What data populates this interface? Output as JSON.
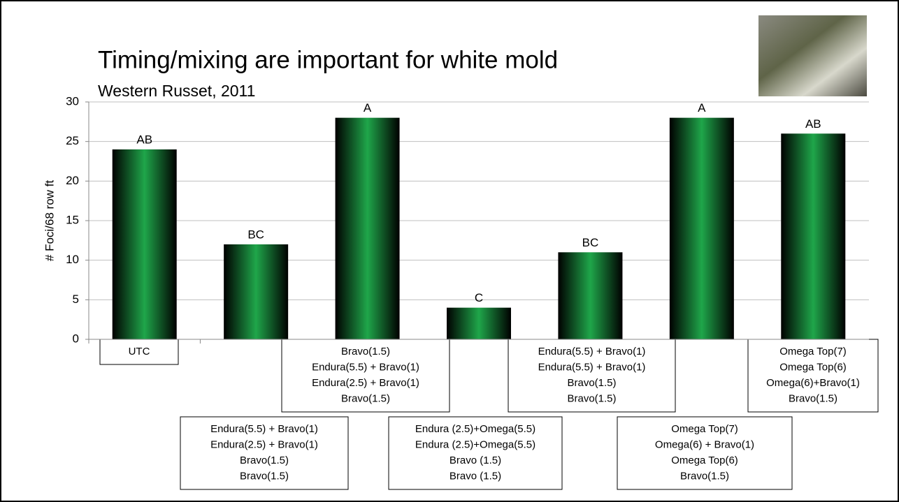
{
  "chart_data": {
    "type": "bar",
    "title": "Timing/mixing are important for white mold",
    "subtitle": "Western Russet, 2011",
    "y_label": "# Foci/68 row ft",
    "categories": [
      [
        "UTC"
      ],
      [
        "Endura(5.5) + Bravo(1)",
        "Endura(2.5) + Bravo(1)",
        "Bravo(1.5)",
        "Bravo(1.5)"
      ],
      [
        "Bravo(1.5)",
        "Endura(5.5) + Bravo(1)",
        "Endura(2.5) + Bravo(1)",
        "Bravo(1.5)"
      ],
      [
        "Endura (2.5)+Omega(5.5)",
        "Endura (2.5)+Omega(5.5)",
        "Bravo (1.5)",
        "Bravo (1.5)"
      ],
      [
        "Endura(5.5) + Bravo(1)",
        "Endura(5.5) + Bravo(1)",
        "Bravo(1.5)",
        "Bravo(1.5)"
      ],
      [
        "Omega Top(7)",
        "Omega(6) + Bravo(1)",
        "Omega Top(6)",
        "Bravo(1.5)"
      ],
      [
        "Omega Top(7)",
        "Omega Top(6)",
        "Omega(6)+Bravo(1)",
        "Bravo(1.5)"
      ]
    ],
    "values": [
      24,
      12,
      28,
      4,
      11,
      28,
      26
    ],
    "letter_groups": [
      "AB",
      "BC",
      "A",
      "C",
      "BC",
      "A",
      "AB"
    ],
    "color": "#1fa64a",
    "ylim": [
      0,
      30
    ],
    "yticks": [
      0,
      5,
      10,
      15,
      20,
      25,
      30
    ],
    "grid": true
  }
}
